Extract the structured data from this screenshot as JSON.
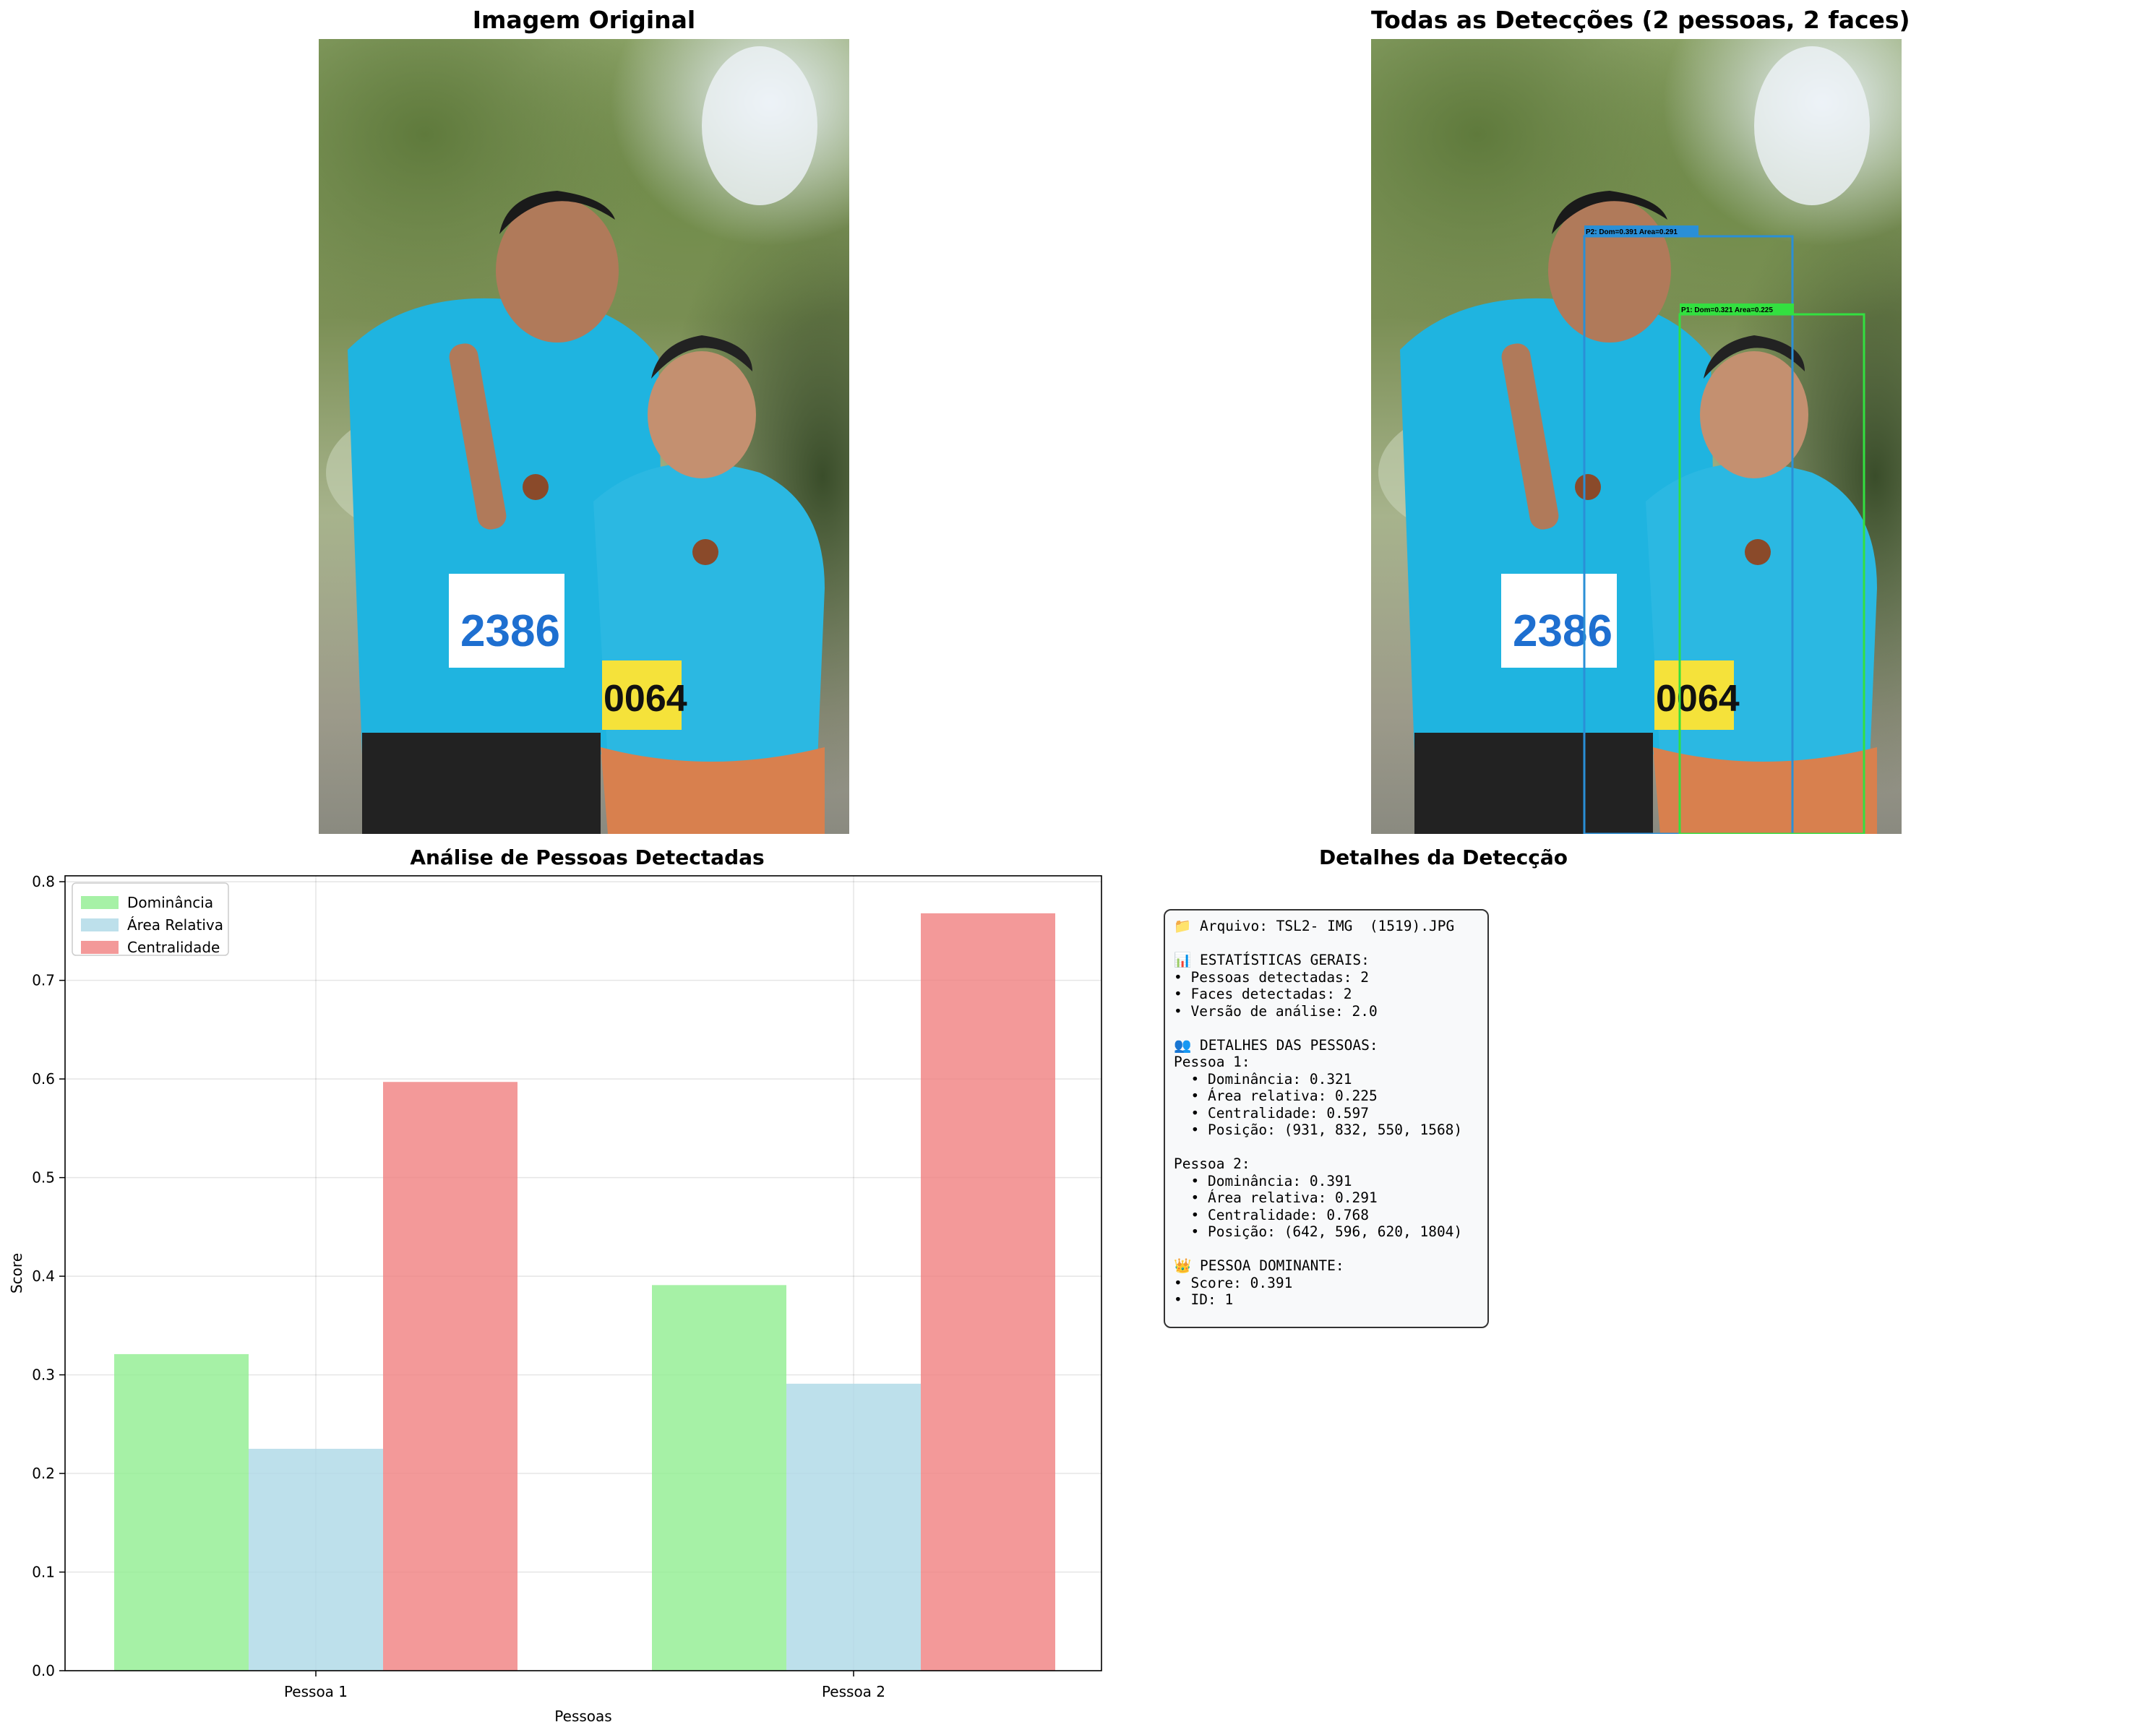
{
  "panels": {
    "original_title": "Imagem Original",
    "detections_title": "Todas as Detecções (2 pessoas, 2 faces)",
    "chart_title": "Análise de Pessoas Detectadas",
    "details_title": "Detalhes da Detecção"
  },
  "photo": {
    "bib_left": "2386",
    "bib_right": "0064",
    "box_labels": {
      "p1": "P1: Dom=0.321 Area=0.225",
      "p2": "P2: Dom=0.391 Area=0.291"
    },
    "box_colors": {
      "p1": "#33e040",
      "p2": "#2a8fd6"
    }
  },
  "details": {
    "lines": [
      "📁 Arquivo: TSL2- IMG  (1519).JPG",
      "",
      "📊 ESTATÍSTICAS GERAIS:",
      "• Pessoas detectadas: 2",
      "• Faces detectadas: 2",
      "• Versão de análise: 2.0",
      "",
      "👥 DETALHES DAS PESSOAS:",
      "Pessoa 1:",
      "  • Dominância: 0.321",
      "  • Área relativa: 0.225",
      "  • Centralidade: 0.597",
      "  • Posição: (931, 832, 550, 1568)",
      "",
      "Pessoa 2:",
      "  • Dominância: 0.391",
      "  • Área relativa: 0.291",
      "  • Centralidade: 0.768",
      "  • Posição: (642, 596, 620, 1804)",
      "",
      "👑 PESSOA DOMINANTE:",
      "• Score: 0.391",
      "• ID: 1"
    ]
  },
  "chart_data": {
    "type": "bar",
    "title": "Análise de Pessoas Detectadas",
    "xlabel": "Pessoas",
    "ylabel": "Score",
    "categories": [
      "Pessoa 1",
      "Pessoa 2"
    ],
    "series": [
      {
        "name": "Dominância",
        "values": [
          0.321,
          0.391
        ],
        "color": "#90ee90"
      },
      {
        "name": "Área Relativa",
        "values": [
          0.225,
          0.291
        ],
        "color": "#add8e6"
      },
      {
        "name": "Centralidade",
        "values": [
          0.597,
          0.768
        ],
        "color": "#f08080"
      }
    ],
    "ylim": [
      0,
      0.806
    ],
    "yticks": [
      "0.0",
      "0.1",
      "0.2",
      "0.3",
      "0.4",
      "0.5",
      "0.6",
      "0.7",
      "0.8"
    ],
    "grid": true,
    "legend": "upper-left"
  }
}
